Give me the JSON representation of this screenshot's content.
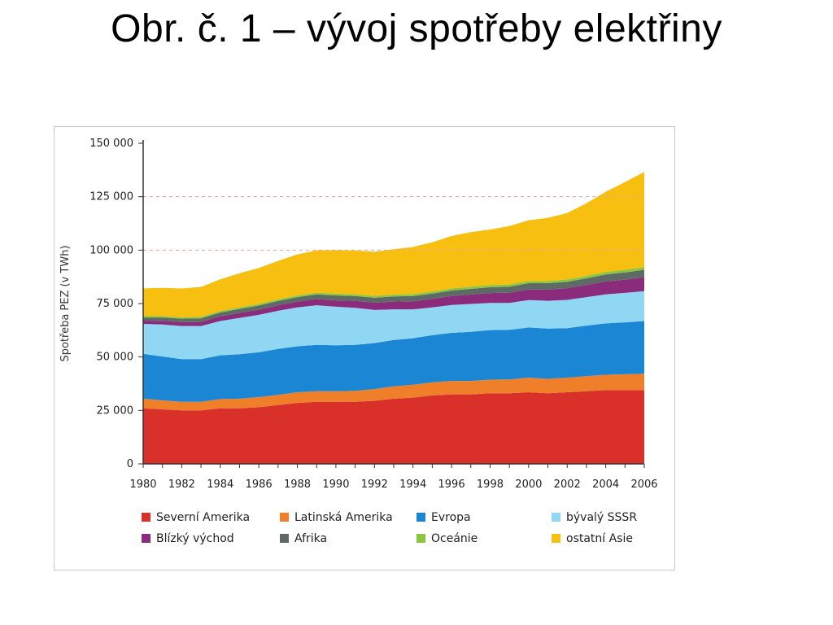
{
  "slide": {
    "title": "Obr. č. 1 – vývoj spotřeby elektřiny"
  },
  "chart_data": {
    "type": "area",
    "stacked": true,
    "ylabel": "Spotřeba PEZ (v TWh)",
    "xlabel": "",
    "x": [
      1980,
      1981,
      1982,
      1983,
      1984,
      1985,
      1986,
      1987,
      1988,
      1989,
      1990,
      1991,
      1992,
      1993,
      1994,
      1995,
      1996,
      1997,
      1998,
      1999,
      2000,
      2001,
      2002,
      2003,
      2004,
      2005,
      2006
    ],
    "xticks": [
      "1980",
      "1982",
      "1984",
      "1986",
      "1988",
      "1990",
      "1992",
      "1994",
      "1996",
      "1998",
      "2000",
      "2002",
      "2004",
      "2006"
    ],
    "yticks": [
      0,
      25000,
      50000,
      75000,
      100000,
      125000,
      150000
    ],
    "ytick_labels": [
      "0",
      "25 000",
      "50 000",
      "75 000",
      "100 000",
      "125 000",
      "150 000"
    ],
    "ylim": [
      0,
      150000
    ],
    "grid": "dashed horizontal at 100 000 and 125 000",
    "legend_position": "bottom",
    "series": [
      {
        "name": "Severní Amerika",
        "color": "#d9302a",
        "values": [
          26000,
          25500,
          25000,
          25000,
          26000,
          26000,
          26500,
          27500,
          28500,
          29000,
          29000,
          29000,
          29500,
          30500,
          31000,
          32000,
          32500,
          32500,
          33000,
          33000,
          33500,
          33000,
          33500,
          34000,
          34500,
          34500,
          34500
        ]
      },
      {
        "name": "Latinská Amerika",
        "color": "#f07f2a",
        "values": [
          4500,
          4200,
          4000,
          4000,
          4300,
          4500,
          4700,
          4800,
          5000,
          5000,
          5000,
          5200,
          5500,
          5800,
          6000,
          6200,
          6300,
          6300,
          6400,
          6500,
          6800,
          6800,
          6800,
          7000,
          7200,
          7400,
          7700
        ]
      },
      {
        "name": "Evropa",
        "color": "#1b87d4",
        "values": [
          21000,
          20500,
          20000,
          20000,
          20500,
          20800,
          21000,
          21500,
          21500,
          21700,
          21500,
          21500,
          21500,
          21700,
          21800,
          22000,
          22500,
          23000,
          23200,
          23200,
          23500,
          23500,
          23200,
          23700,
          24000,
          24300,
          24600
        ]
      },
      {
        "name": "bývalý SSSR",
        "color": "#8fd7f2",
        "values": [
          14000,
          15000,
          15500,
          15500,
          16000,
          17000,
          17500,
          17800,
          18200,
          18500,
          18000,
          17300,
          15500,
          14300,
          13500,
          13000,
          13000,
          13000,
          12700,
          12600,
          12800,
          13000,
          13200,
          13300,
          13600,
          13800,
          14000
        ]
      },
      {
        "name": "Blízký východ",
        "color": "#8a2b7c",
        "values": [
          1500,
          1700,
          1800,
          1900,
          2200,
          2300,
          2400,
          2600,
          2700,
          2900,
          3000,
          3200,
          3400,
          3600,
          3800,
          4000,
          4200,
          4400,
          4600,
          4800,
          5000,
          5200,
          5500,
          5700,
          6000,
          6200,
          6500
        ]
      },
      {
        "name": "Afrika",
        "color": "#5e6b64",
        "values": [
          1500,
          1600,
          1600,
          1700,
          1800,
          1900,
          2000,
          2000,
          2100,
          2200,
          2300,
          2300,
          2300,
          2400,
          2400,
          2500,
          2600,
          2700,
          2700,
          2800,
          2900,
          3000,
          3000,
          3100,
          3300,
          3400,
          3500
        ]
      },
      {
        "name": "Oceánie",
        "color": "#8cc63f",
        "values": [
          600,
          600,
          650,
          650,
          700,
          700,
          750,
          750,
          800,
          800,
          850,
          850,
          900,
          900,
          950,
          950,
          1000,
          1000,
          1050,
          1050,
          1100,
          1100,
          1150,
          1150,
          1200,
          1200,
          1250
        ]
      },
      {
        "name": "ostatní Asie",
        "color": "#f7bf0f",
        "values": [
          13000,
          13200,
          13500,
          14000,
          14800,
          16000,
          16800,
          18000,
          19200,
          19800,
          20400,
          20500,
          20600,
          21200,
          22000,
          23000,
          24500,
          25500,
          26000,
          27300,
          28400,
          29500,
          31000,
          34000,
          37500,
          41000,
          44500
        ]
      }
    ]
  }
}
